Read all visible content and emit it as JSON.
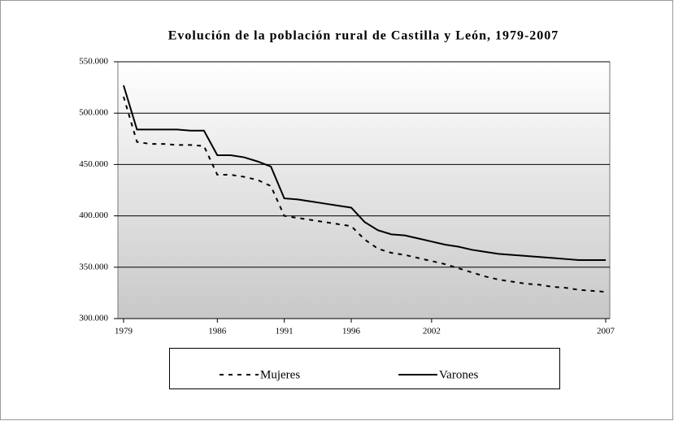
{
  "chart_data": {
    "type": "line",
    "title": "Evolución de la población rural de Castilla y León, 1979-2007",
    "categories": [
      "1979",
      null,
      null,
      null,
      null,
      null,
      null,
      "1986",
      null,
      null,
      null,
      null,
      "1991",
      null,
      null,
      null,
      null,
      "1996",
      null,
      null,
      null,
      null,
      null,
      "2002",
      null,
      null,
      null,
      null,
      null,
      null,
      null,
      null,
      null,
      null,
      null,
      null,
      "2007"
    ],
    "series": [
      {
        "name": "Mujeres",
        "color": "#000000",
        "dash": "dashed",
        "values": [
          516000,
          472000,
          470000,
          470000,
          469000,
          469000,
          468000,
          440000,
          440000,
          438000,
          435000,
          429000,
          400000,
          398000,
          396000,
          394000,
          392000,
          390000,
          377000,
          368000,
          364000,
          362000,
          359000,
          356000,
          353000,
          349000,
          345000,
          341000,
          338000,
          336000,
          334000,
          333000,
          331000,
          330000,
          328000,
          327000,
          326000
        ]
      },
      {
        "name": "Varones",
        "color": "#000000",
        "dash": "solid",
        "values": [
          527000,
          484000,
          484000,
          484000,
          484000,
          483000,
          483000,
          459000,
          459000,
          457000,
          453000,
          448000,
          417000,
          416000,
          414000,
          412000,
          410000,
          408000,
          394000,
          386000,
          382000,
          381000,
          378000,
          375000,
          372000,
          370000,
          367000,
          365000,
          363000,
          362000,
          361000,
          360000,
          359000,
          358000,
          357000,
          357000,
          357000
        ]
      }
    ],
    "ylim": [
      300000,
      550000
    ],
    "yticks": [
      {
        "value": 300000,
        "label": "300.000"
      },
      {
        "value": 350000,
        "label": "350.000"
      },
      {
        "value": 400000,
        "label": "400.000"
      },
      {
        "value": 450000,
        "label": "450.000"
      },
      {
        "value": 500000,
        "label": "500.000"
      },
      {
        "value": 550000,
        "label": "550.000"
      }
    ],
    "grid": true,
    "legend": "bottom"
  }
}
